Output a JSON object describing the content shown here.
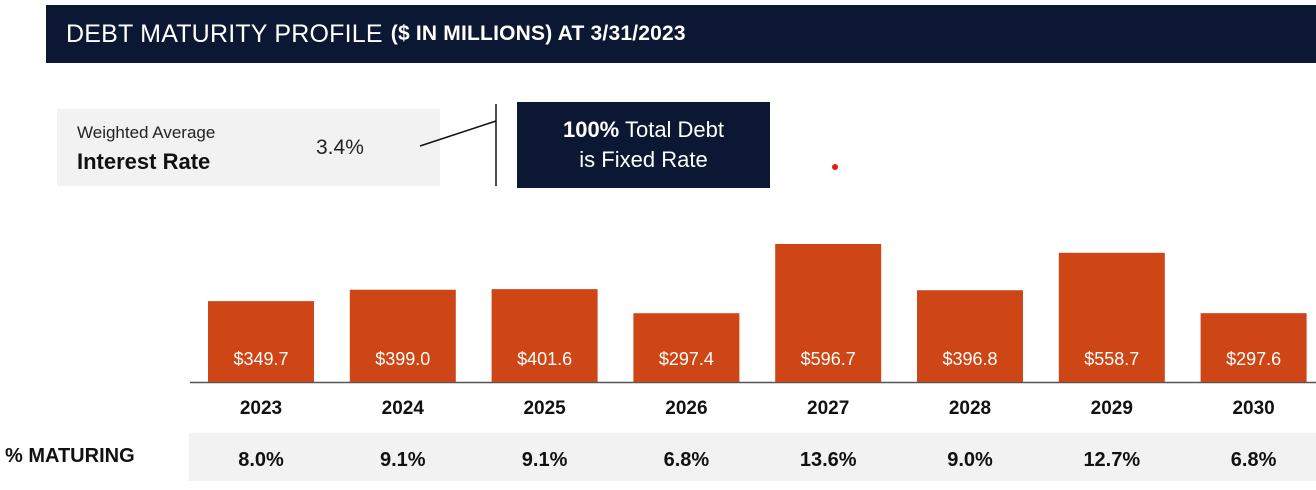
{
  "header": {
    "title_main": "DEBT MATURITY PROFILE",
    "title_sub": "($ IN MILLIONS) AT 3/31/2023"
  },
  "rate_box": {
    "label_small": "Weighted Average",
    "label_big": "Interest Rate",
    "value": "3.4%"
  },
  "fixed_box": {
    "bold": "100%",
    "line1_rest": " Total Debt",
    "line2": "is Fixed Rate"
  },
  "maturing": {
    "label": "% MATURING"
  },
  "colors": {
    "bar": "#cf4616",
    "navy": "#0b1733",
    "band": "#f2f2f2",
    "dot": "#e31b1b"
  },
  "chart_data": {
    "type": "bar",
    "categories": [
      "2023",
      "2024",
      "2025",
      "2026",
      "2027",
      "2028",
      "2029",
      "2030"
    ],
    "values": [
      349.7,
      399.0,
      401.6,
      297.4,
      596.7,
      396.8,
      558.7,
      297.6
    ],
    "value_labels": [
      "$349.7",
      "$399.0",
      "$401.6",
      "$297.4",
      "$596.7",
      "$396.8",
      "$558.7",
      "$297.6"
    ],
    "percent_maturing": [
      "8.0%",
      "9.1%",
      "9.1%",
      "6.8%",
      "13.6%",
      "9.0%",
      "12.7%",
      "6.8%"
    ],
    "title": "DEBT MATURITY PROFILE ($ IN MILLIONS) AT 3/31/2023",
    "xlabel": "",
    "ylabel": "",
    "ylim": [
      0,
      596.7
    ],
    "grid": false,
    "legend": "none"
  }
}
